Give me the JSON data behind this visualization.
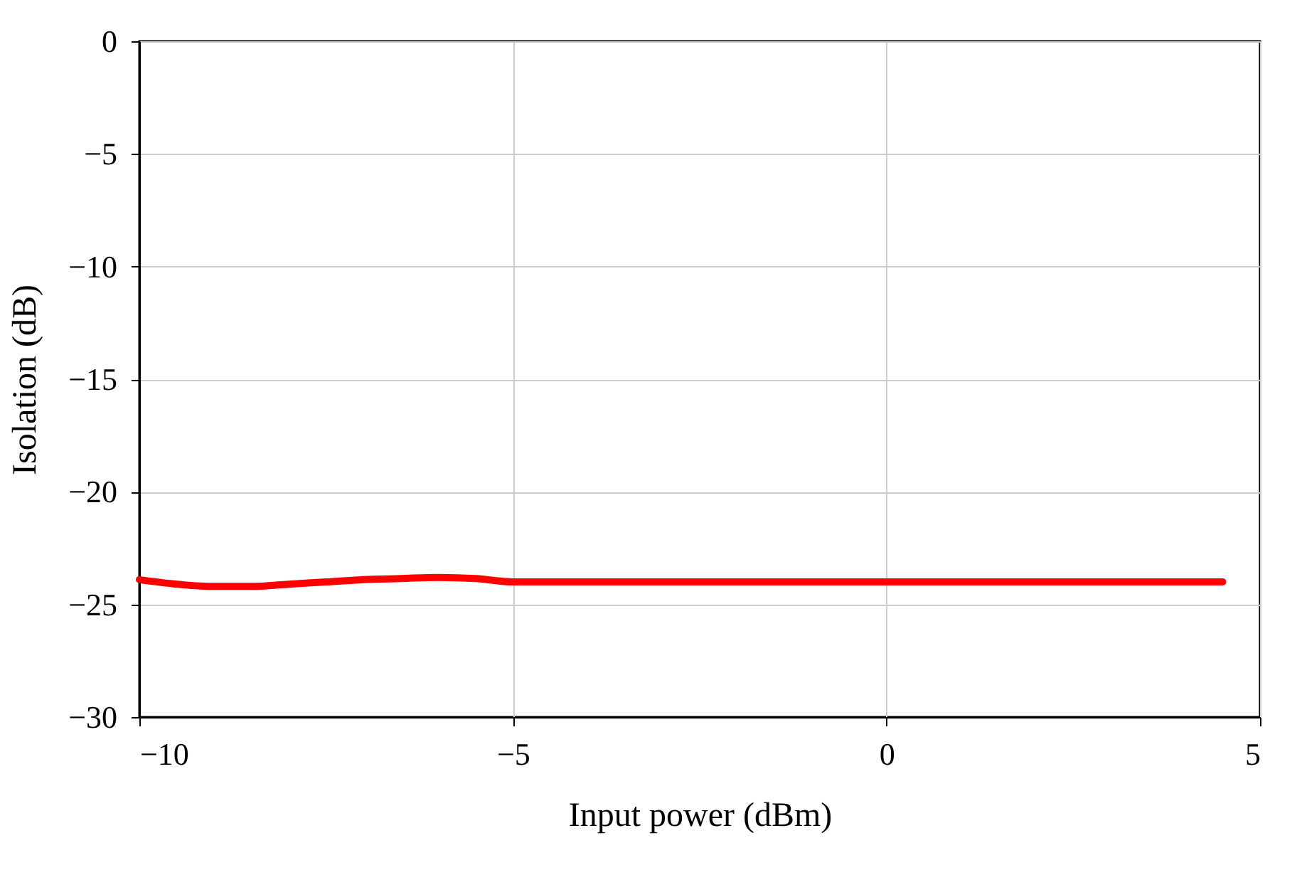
{
  "chart_data": {
    "type": "line",
    "xlabel": "Input power (dBm)",
    "ylabel": "Isolation (dB)",
    "x": [
      -10,
      -9.5,
      -9,
      -8.5,
      -8,
      -7.5,
      -7,
      -6.5,
      -6,
      -5.5,
      -5,
      -4,
      -2,
      0,
      2,
      4,
      4.5
    ],
    "series": [
      {
        "color": "#ff0000",
        "values": [
          -23.9,
          -24.1,
          -24.2,
          -24.2,
          -24.1,
          -24,
          -23.9,
          -23.85,
          -23.8,
          -23.85,
          -24,
          -24,
          -24,
          -24,
          -24,
          -24,
          -24
        ]
      }
    ],
    "xlim": [
      -10,
      5
    ],
    "xticks": [
      -10,
      -5,
      0,
      5
    ],
    "ylim": [
      -30,
      0
    ],
    "yticks": [
      -30,
      -25,
      -20,
      -15,
      -10,
      -5,
      0
    ],
    "grid": true,
    "marker": "none",
    "line_style": "solid"
  }
}
